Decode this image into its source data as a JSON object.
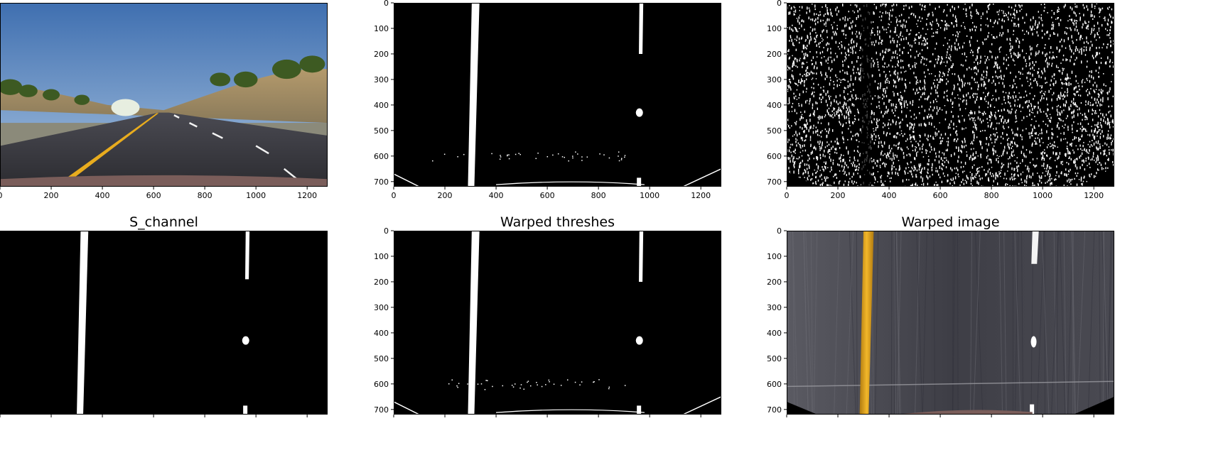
{
  "figure": {
    "colors": {
      "background": "#ffffff",
      "image_black": "#000000",
      "mask_white": "#ffffff"
    }
  },
  "chart_data": [
    {
      "type": "image",
      "title": "",
      "content": "original-road-photo",
      "xlim": [
        0,
        1280
      ],
      "ylim": [
        720,
        0
      ],
      "xticks": [
        0,
        200,
        400,
        600,
        800,
        1000,
        1200
      ],
      "yticks": []
    },
    {
      "type": "image",
      "title": "",
      "content": "binary-mask",
      "xlim": [
        0,
        1280
      ],
      "ylim": [
        720,
        0
      ],
      "xticks": [
        0,
        200,
        400,
        600,
        800,
        1000,
        1200
      ],
      "yticks": [
        0,
        100,
        200,
        300,
        400,
        500,
        600,
        700
      ]
    },
    {
      "type": "image",
      "title": "",
      "content": "noisy-gradient-mask",
      "xlim": [
        0,
        1280
      ],
      "ylim": [
        720,
        0
      ],
      "xticks": [
        0,
        200,
        400,
        600,
        800,
        1000,
        1200
      ],
      "yticks": [
        0,
        100,
        200,
        300,
        400,
        500,
        600,
        700
      ]
    },
    {
      "type": "image",
      "title": "S_channel",
      "content": "binary-mask",
      "xlim": [
        0,
        1280
      ],
      "ylim": [
        720,
        0
      ],
      "xticks": [],
      "yticks": []
    },
    {
      "type": "image",
      "title": "Warped threshes",
      "content": "binary-mask",
      "xlim": [
        0,
        1280
      ],
      "ylim": [
        720,
        0
      ],
      "xticks": [],
      "yticks": [
        0,
        100,
        200,
        300,
        400,
        500,
        600,
        700
      ]
    },
    {
      "type": "image",
      "title": "Warped image",
      "content": "warped-road-photo",
      "xlim": [
        0,
        1280
      ],
      "ylim": [
        720,
        0
      ],
      "xticks": [],
      "yticks": [
        0,
        100,
        200,
        300,
        400,
        500,
        600,
        700
      ]
    }
  ]
}
